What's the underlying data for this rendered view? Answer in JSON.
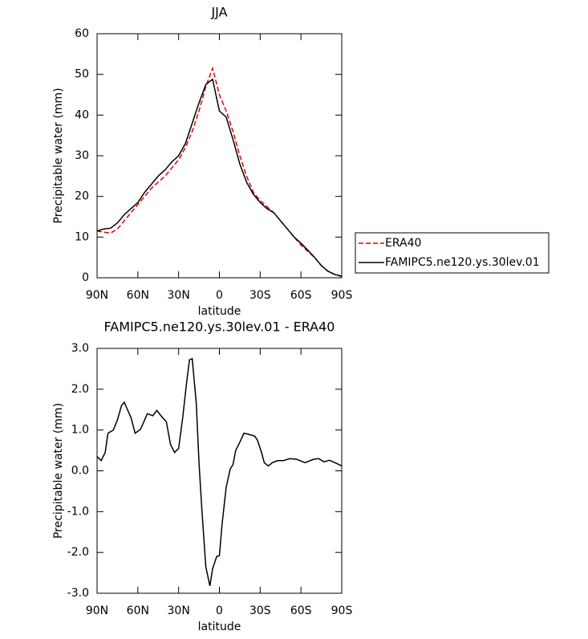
{
  "chart_data": [
    {
      "type": "line",
      "title": "JJA",
      "x_label": "latitude",
      "y_label": "Precipitable water (mm)",
      "x": [
        90,
        85,
        80,
        75,
        70,
        65,
        60,
        55,
        50,
        45,
        40,
        35,
        30,
        25,
        20,
        15,
        10,
        5,
        0,
        -5,
        -10,
        -15,
        -20,
        -25,
        -30,
        -35,
        -40,
        -45,
        -50,
        -55,
        -60,
        -65,
        -70,
        -75,
        -80,
        -85,
        -90
      ],
      "series": [
        {
          "name": "ERA40",
          "color": "#e00000",
          "dash": true,
          "values": [
            11.5,
            11.2,
            11,
            12,
            14,
            16,
            18,
            20,
            22,
            23.5,
            25,
            27,
            29,
            32,
            36,
            41,
            47,
            51.5,
            45,
            41,
            36,
            30,
            25,
            21,
            19,
            17.5,
            16,
            14,
            12,
            10,
            8,
            6.5,
            5,
            3,
            1.5,
            0.8,
            0.3
          ]
        },
        {
          "name": "FAMIPC5.ne120.ys.30lev.01",
          "color": "#000000",
          "dash": false,
          "values": [
            11.5,
            12,
            12.2,
            13.5,
            15.5,
            17,
            18.5,
            21,
            23,
            25,
            26.5,
            28.5,
            30,
            33,
            38,
            43,
            47.5,
            48.8,
            41,
            39.5,
            34,
            28,
            23.5,
            20.5,
            18.5,
            17,
            16,
            14,
            12,
            10,
            8.5,
            6.8,
            5,
            3,
            1.6,
            0.8,
            0.4
          ]
        }
      ],
      "xlim": [
        90,
        -90
      ],
      "xticks": [
        {
          "value": 90,
          "label": "90N"
        },
        {
          "value": 60,
          "label": "60N"
        },
        {
          "value": 30,
          "label": "30N"
        },
        0,
        {
          "value": -30,
          "label": "30S"
        },
        {
          "value": -60,
          "label": "60S"
        },
        {
          "value": -90,
          "label": "90S"
        }
      ],
      "ylim": [
        0,
        60
      ],
      "yticks": [
        0,
        10,
        20,
        30,
        40,
        50,
        60
      ],
      "legend": "right"
    },
    {
      "type": "line",
      "title": "FAMIPC5.ne120.ys.30lev.01 - ERA40",
      "x_label": "latitude",
      "y_label": "Precipitable water (mm)",
      "color": "#000000",
      "x": [
        90,
        87,
        84,
        82,
        78,
        75,
        72,
        70,
        65,
        62,
        58,
        53,
        49,
        46,
        43,
        39,
        36,
        33,
        30,
        27,
        24,
        22,
        20,
        17,
        15,
        13,
        10,
        7,
        5,
        2,
        0,
        -2,
        -5,
        -8,
        -10,
        -12,
        -15,
        -18,
        -21,
        -26,
        -28,
        -31,
        -33,
        -36,
        -39,
        -43,
        -47,
        -52,
        -57,
        -63,
        -69,
        -73,
        -77,
        -81,
        -85,
        -90
      ],
      "values": [
        0.35,
        0.25,
        0.45,
        0.92,
        1.0,
        1.25,
        1.6,
        1.68,
        1.3,
        0.92,
        1.02,
        1.4,
        1.35,
        1.48,
        1.35,
        1.2,
        0.65,
        0.45,
        0.55,
        1.3,
        2.2,
        2.72,
        2.75,
        1.65,
        0.2,
        -0.9,
        -2.35,
        -2.82,
        -2.4,
        -2.1,
        -2.08,
        -1.3,
        -0.4,
        0.05,
        0.15,
        0.5,
        0.7,
        0.92,
        0.9,
        0.85,
        0.75,
        0.45,
        0.2,
        0.12,
        0.2,
        0.25,
        0.25,
        0.3,
        0.28,
        0.2,
        0.28,
        0.3,
        0.22,
        0.26,
        0.2,
        0.12
      ],
      "xlim": [
        90,
        -90
      ],
      "xticks": [
        {
          "value": 90,
          "label": "90N"
        },
        {
          "value": 60,
          "label": "60N"
        },
        {
          "value": 30,
          "label": "30N"
        },
        0,
        {
          "value": -30,
          "label": "30S"
        },
        {
          "value": -60,
          "label": "60S"
        },
        {
          "value": -90,
          "label": "90S"
        }
      ],
      "ylim": [
        -3,
        3
      ],
      "yticks": [
        {
          "value": -3,
          "label": "-3.0"
        },
        {
          "value": -2,
          "label": "-2.0"
        },
        {
          "value": -1,
          "label": "-1.0"
        },
        {
          "value": 0,
          "label": "0.0"
        },
        {
          "value": 1,
          "label": "1.0"
        },
        {
          "value": 2,
          "label": "2.0"
        },
        {
          "value": 3,
          "label": "3.0"
        }
      ]
    }
  ]
}
